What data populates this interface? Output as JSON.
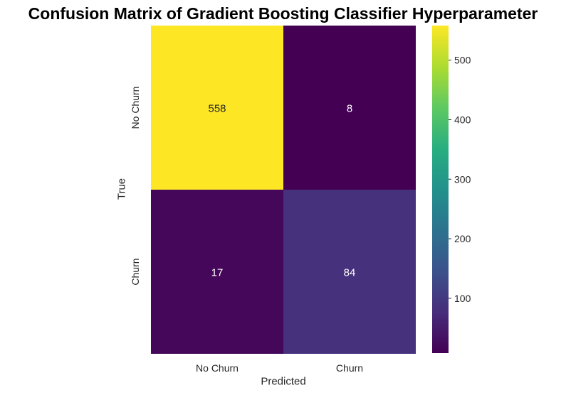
{
  "chart_data": {
    "type": "heatmap",
    "title": "Confusion Matrix of Gradient Boosting Classifier Hyperparameter",
    "xlabel": "Predicted",
    "ylabel": "True",
    "x_categories": [
      "No Churn",
      "Churn"
    ],
    "y_categories": [
      "No Churn",
      "Churn"
    ],
    "values": [
      [
        558,
        8
      ],
      [
        17,
        84
      ]
    ],
    "colormap": "viridis",
    "colorbar": {
      "range": [
        8,
        558
      ],
      "ticks": [
        100,
        200,
        300,
        400,
        500
      ]
    },
    "annotation_colors": {
      "dark": "#262626",
      "light": "#ffffff"
    }
  }
}
